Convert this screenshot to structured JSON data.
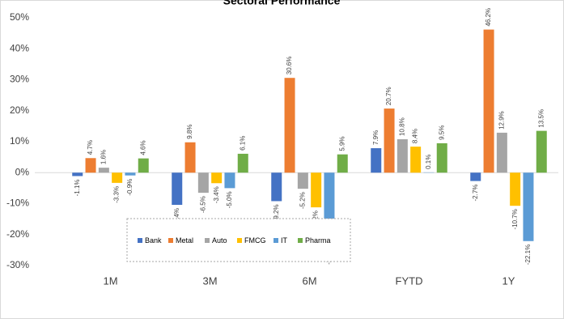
{
  "chart_data": {
    "type": "bar",
    "title": "Sectoral Performance",
    "categories": [
      "1M",
      "3M",
      "6M",
      "FYTD",
      "1Y"
    ],
    "series": [
      {
        "name": "Bank",
        "color": "#4472c4",
        "values": [
          -1.1,
          -10.4,
          -9.2,
          7.9,
          -2.7
        ],
        "value_labels": [
          "-1.1%",
          "-10.4%",
          "-9.2%",
          "7.9%",
          "-2.7%"
        ]
      },
      {
        "name": "Metal",
        "color": "#ed7d31",
        "values": [
          4.7,
          9.8,
          30.6,
          20.7,
          46.2
        ],
        "value_labels": [
          "4.7%",
          "9.8%",
          "30.6%",
          "20.7%",
          "46.2%"
        ]
      },
      {
        "name": "Auto",
        "color": "#a5a5a5",
        "values": [
          1.6,
          -6.5,
          -5.2,
          10.8,
          12.9
        ],
        "value_labels": [
          "1.6%",
          "-6.5%",
          "-5.2%",
          "10.8%",
          "12.9%"
        ]
      },
      {
        "name": "FMCG",
        "color": "#ffc000",
        "values": [
          -3.3,
          -3.4,
          -11.2,
          8.4,
          -10.7
        ],
        "value_labels": [
          "-3.3%",
          "-3.4%",
          "-11.2%",
          "8.4%",
          "-10.7%"
        ]
      },
      {
        "name": "IT",
        "color": "#5b9bd5",
        "values": [
          -0.9,
          -5.0,
          -22.0,
          0.1,
          -22.1
        ],
        "value_labels": [
          "-0.9%",
          "-5.0%",
          "-22.0%",
          "0.1%",
          "-22.1%"
        ]
      },
      {
        "name": "Pharma",
        "color": "#70ad47",
        "values": [
          4.6,
          6.1,
          5.9,
          9.5,
          13.5
        ],
        "value_labels": [
          "4.6%",
          "6.1%",
          "5.9%",
          "9.5%",
          "13.5%"
        ]
      }
    ],
    "ylim": [
      -30,
      50
    ],
    "yticks": [
      {
        "value": -30,
        "label": "-30%"
      },
      {
        "value": -20,
        "label": "-20%"
      },
      {
        "value": -10,
        "label": "-10%"
      },
      {
        "value": 0,
        "label": "0%"
      },
      {
        "value": 10,
        "label": "10%"
      },
      {
        "value": 20,
        "label": "20%"
      },
      {
        "value": 30,
        "label": "30%"
      },
      {
        "value": 40,
        "label": "40%"
      },
      {
        "value": 50,
        "label": "50%"
      }
    ]
  }
}
